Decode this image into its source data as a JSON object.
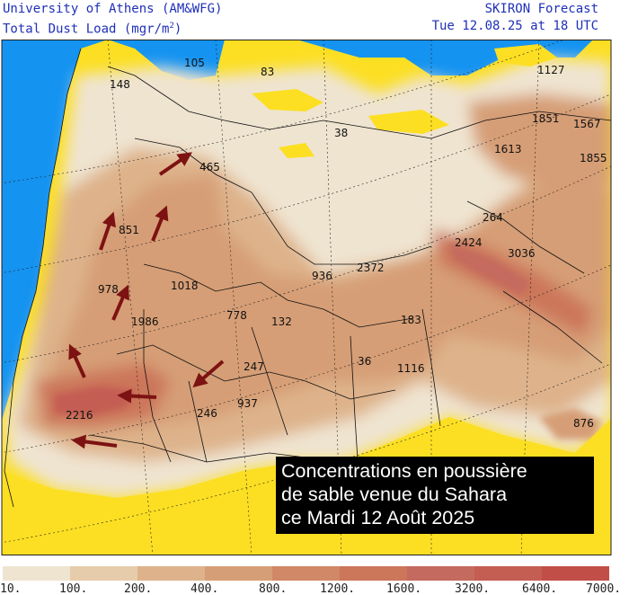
{
  "header": {
    "institution": "University of Athens (AM&WFG)",
    "product_prefix": "Total Dust Load (mgr/m",
    "product_exp": "2",
    "product_suffix": ")",
    "model": "SKIRON Forecast",
    "valid_time": "Tue 12.08.25 at 18 UTC"
  },
  "caption": {
    "line1": "Concentrations en poussière",
    "line2": "de sable venue du Sahara",
    "line3": "ce Mardi 12 Août 2025"
  },
  "map_values": [
    "105",
    "83",
    "148",
    "1127",
    "1851",
    "1567",
    "38",
    "1613",
    "1855",
    "465",
    "264",
    "851",
    "2424",
    "3036",
    "2372",
    "936",
    "978",
    "1018",
    "1986",
    "778",
    "132",
    "183",
    "247",
    "36",
    "1116",
    "937",
    "246",
    "2216",
    "876"
  ],
  "legend": {
    "ticks": [
      "10.",
      "100.",
      "200.",
      "400.",
      "800.",
      "1200.",
      "1600.",
      "3200.",
      "6400.",
      "7000."
    ],
    "colors": [
      "#efe4d0",
      "#e7ccab",
      "#deb38b",
      "#d69e76",
      "#d18866",
      "#cc765a",
      "#c56a5e",
      "#c45d52",
      "#c24e48"
    ]
  },
  "colors": {
    "ocean": "#1493f1",
    "low_dust": "#fcdf22",
    "arrow": "#7d1212",
    "header_text": "#1f2fb8"
  }
}
